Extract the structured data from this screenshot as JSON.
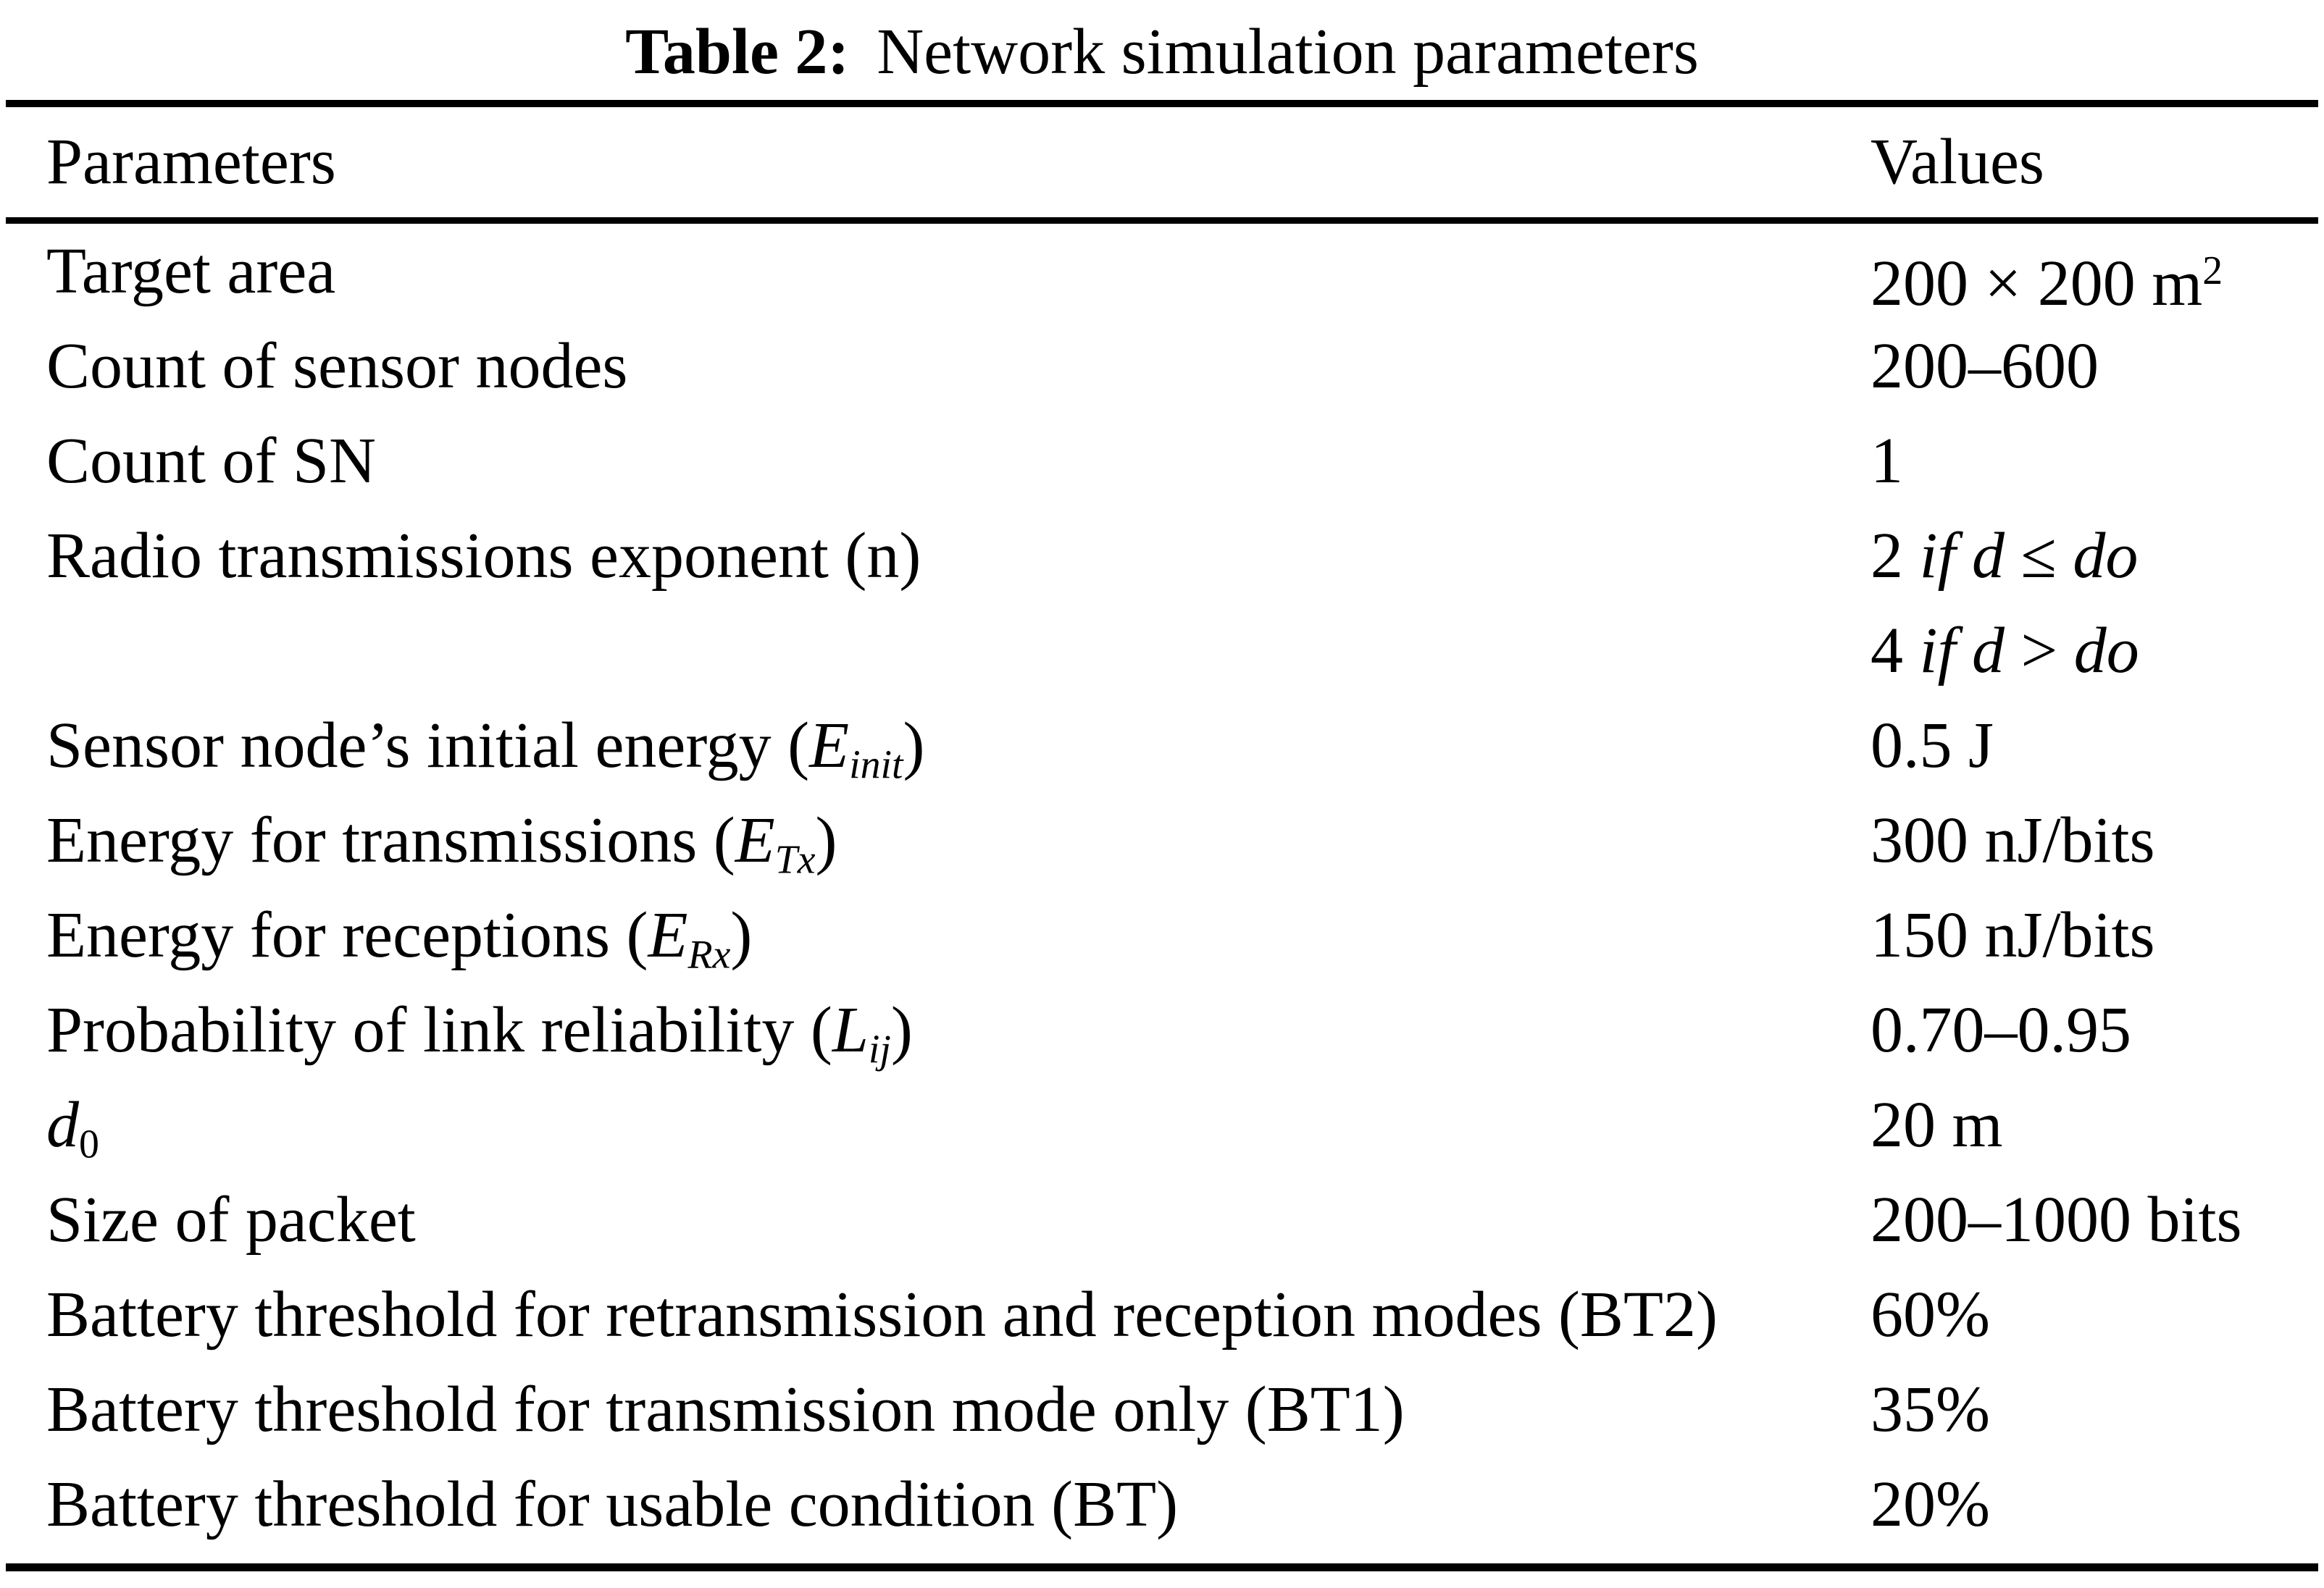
{
  "colors": {
    "background": "#ffffff",
    "text": "#000000",
    "rule": "#000000"
  },
  "caption": {
    "label": "Table 2:",
    "text": "Network simulation parameters"
  },
  "table": {
    "header": {
      "parameters": "Parameters",
      "values": "Values"
    },
    "rows": [
      {
        "label": [
          {
            "t": "Target area"
          }
        ],
        "values": [
          [
            {
              "t": "200 × 200 m"
            },
            {
              "t": "2",
              "s": "sup"
            }
          ]
        ]
      },
      {
        "label": [
          {
            "t": "Count of sensor nodes"
          }
        ],
        "values": [
          [
            {
              "t": "200–600"
            }
          ]
        ]
      },
      {
        "label": [
          {
            "t": "Count of SN"
          }
        ],
        "values": [
          [
            {
              "t": "1"
            }
          ]
        ]
      },
      {
        "label": [
          {
            "t": "Radio transmissions exponent (n)"
          }
        ],
        "values": [
          [
            {
              "t": "2 "
            },
            {
              "t": "if d",
              "s": "i"
            },
            {
              "t": " ≤ "
            },
            {
              "t": "do",
              "s": "i"
            }
          ],
          [
            {
              "t": "4 "
            },
            {
              "t": "if d",
              "s": "i"
            },
            {
              "t": " > "
            },
            {
              "t": "do",
              "s": "i"
            }
          ]
        ]
      },
      {
        "label": [
          {
            "t": "Sensor node’s initial energy ("
          },
          {
            "t": "E",
            "s": "i"
          },
          {
            "t": "init",
            "s": "isub"
          },
          {
            "t": ")"
          }
        ],
        "values": [
          [
            {
              "t": "0.5 J"
            }
          ]
        ]
      },
      {
        "label": [
          {
            "t": "Energy for transmissions ("
          },
          {
            "t": "E",
            "s": "i"
          },
          {
            "t": "Tx",
            "s": "isub"
          },
          {
            "t": ")"
          }
        ],
        "values": [
          [
            {
              "t": "300 nJ/bits"
            }
          ]
        ]
      },
      {
        "label": [
          {
            "t": "Energy for receptions ("
          },
          {
            "t": "E",
            "s": "i"
          },
          {
            "t": "Rx",
            "s": "isub"
          },
          {
            "t": ")"
          }
        ],
        "values": [
          [
            {
              "t": "150 nJ/bits"
            }
          ]
        ]
      },
      {
        "label": [
          {
            "t": "Probability of link reliability ("
          },
          {
            "t": "L",
            "s": "i"
          },
          {
            "t": "ij",
            "s": "isub"
          },
          {
            "t": ")"
          }
        ],
        "values": [
          [
            {
              "t": "0.70–0.95"
            }
          ]
        ]
      },
      {
        "label": [
          {
            "t": "d",
            "s": "i"
          },
          {
            "t": "0",
            "s": "sub"
          }
        ],
        "values": [
          [
            {
              "t": "20 m"
            }
          ]
        ]
      },
      {
        "label": [
          {
            "t": "Size of packet"
          }
        ],
        "values": [
          [
            {
              "t": "200–1000 bits"
            }
          ]
        ]
      },
      {
        "label": [
          {
            "t": "Battery threshold for retransmission and reception modes (BT2)"
          }
        ],
        "values": [
          [
            {
              "t": "60%"
            }
          ]
        ]
      },
      {
        "label": [
          {
            "t": "Battery threshold for transmission mode only (BT1)"
          }
        ],
        "values": [
          [
            {
              "t": "35%"
            }
          ]
        ]
      },
      {
        "label": [
          {
            "t": "Battery threshold for usable condition (BT)"
          }
        ],
        "values": [
          [
            {
              "t": "20%"
            }
          ]
        ]
      }
    ]
  }
}
